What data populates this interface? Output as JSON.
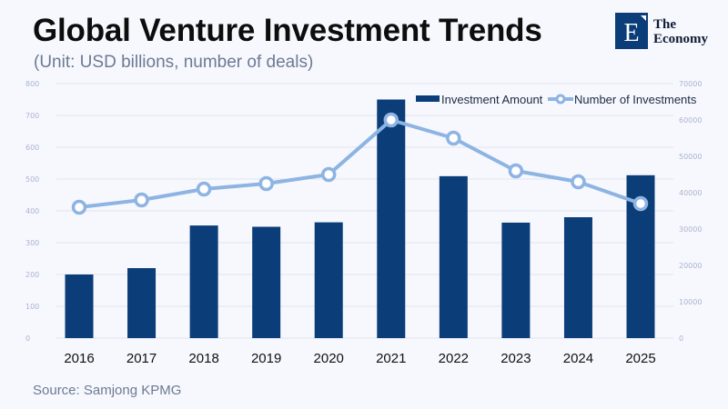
{
  "header": {
    "title": "Global Venture Investment Trends",
    "subtitle": "(Unit: USD billions, number of deals)"
  },
  "logo": {
    "text_line1": "The",
    "text_line2": "Economy",
    "letter": "E",
    "color": "#0b3d78"
  },
  "footer": {
    "source": "Source: Samjong KPMG"
  },
  "chart_data": {
    "type": "bar+line",
    "title": "Global Venture Investment Trends",
    "subtitle": "(Unit: USD billions, number of deals)",
    "categories": [
      "2016",
      "2017",
      "2018",
      "2019",
      "2020",
      "2021",
      "2022",
      "2023",
      "2024",
      "2025"
    ],
    "series": [
      {
        "name": "Investment Amount",
        "type": "bar",
        "axis": "left",
        "color": "#0b3d78",
        "values": [
          200,
          220,
          354,
          350,
          364,
          750,
          509,
          363,
          380,
          512
        ]
      },
      {
        "name": "Number of Investments",
        "type": "line",
        "axis": "right",
        "color": "#8db4e2",
        "values": [
          36000,
          38000,
          41000,
          42500,
          45000,
          60000,
          55000,
          46000,
          43000,
          37000
        ]
      }
    ],
    "y_left": {
      "ylim": [
        0,
        800
      ],
      "ticks": [
        "0",
        "100",
        "200",
        "300",
        "400",
        "500",
        "600",
        "700",
        "800"
      ]
    },
    "y_right": {
      "ylim": [
        0,
        70000
      ],
      "ticks": [
        "0",
        "10000",
        "20000",
        "30000",
        "40000",
        "50000",
        "60000",
        "70000"
      ]
    },
    "grid": true,
    "legend": "top-right"
  }
}
